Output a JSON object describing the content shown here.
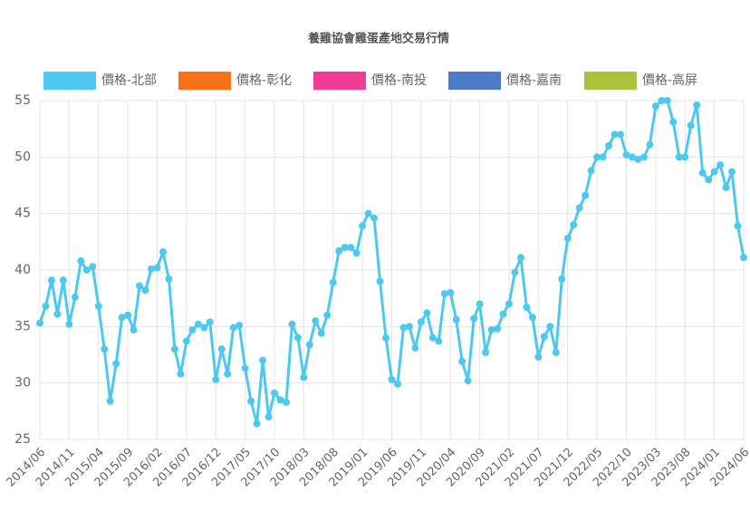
{
  "chart_data": {
    "type": "line",
    "title": "養雞協會雞蛋產地交易行情",
    "categories": [
      "2014/06",
      null,
      null,
      null,
      null,
      "2014/11",
      null,
      null,
      null,
      null,
      "2015/04",
      null,
      null,
      null,
      null,
      "2015/09",
      null,
      null,
      null,
      null,
      "2016/02",
      null,
      null,
      null,
      null,
      "2016/07",
      null,
      null,
      null,
      null,
      "2016/12",
      null,
      null,
      null,
      null,
      "2017/05",
      null,
      null,
      null,
      null,
      "2017/10",
      null,
      null,
      null,
      null,
      "2018/03",
      null,
      null,
      null,
      null,
      "2018/08",
      null,
      null,
      null,
      null,
      "2019/01",
      null,
      null,
      null,
      null,
      "2019/06",
      null,
      null,
      null,
      null,
      "2019/11",
      null,
      null,
      null,
      null,
      "2020/04",
      null,
      null,
      null,
      null,
      "2020/09",
      null,
      null,
      null,
      null,
      "2021/02",
      null,
      null,
      null,
      null,
      "2021/07",
      null,
      null,
      null,
      null,
      "2021/12",
      null,
      null,
      null,
      null,
      "2022/05",
      null,
      null,
      null,
      null,
      "2022/10",
      null,
      null,
      null,
      null,
      "2023/03",
      null,
      null,
      null,
      null,
      "2023/08",
      null,
      null,
      null,
      null,
      "2024/01",
      null,
      null,
      null,
      null,
      "2024/06"
    ],
    "series": [
      {
        "name": "價格-北部",
        "color": "#4dc9f0",
        "values": [
          35.3,
          36.8,
          39.1,
          36.1,
          39.1,
          35.2,
          37.6,
          40.8,
          40.0,
          40.3,
          36.8,
          33.0,
          28.4,
          31.7,
          35.8,
          36.0,
          34.7,
          38.6,
          38.2,
          40.1,
          40.2,
          41.6,
          39.2,
          33.0,
          30.8,
          33.7,
          34.7,
          35.2,
          34.9,
          35.4,
          30.3,
          33.0,
          30.8,
          34.9,
          35.1,
          31.3,
          28.4,
          26.4,
          32.0,
          27.0,
          29.1,
          28.5,
          28.3,
          35.2,
          34.0,
          30.5,
          33.4,
          35.5,
          34.4,
          36.0,
          38.9,
          41.7,
          42.0,
          42.0,
          41.5,
          43.9,
          45.0,
          44.6,
          39.0,
          34.0,
          30.3,
          29.9,
          34.9,
          35.0,
          33.1,
          35.4,
          36.2,
          34.0,
          33.7,
          37.9,
          38.0,
          35.6,
          31.9,
          30.2,
          35.7,
          37.0,
          32.7,
          34.7,
          34.8,
          36.1,
          37.0,
          39.8,
          41.1,
          36.7,
          35.8,
          32.3,
          34.1,
          35.0,
          32.7,
          39.2,
          42.8,
          44.0,
          45.5,
          46.6,
          48.8,
          50.0,
          50.0,
          51.0,
          52.0,
          52.0,
          50.2,
          50.0,
          49.8,
          50.0,
          51.1,
          54.5,
          55.0,
          55.0,
          53.1,
          50.0,
          50.0,
          52.8,
          54.6,
          48.6,
          48.0,
          48.7,
          49.3,
          47.3,
          48.7,
          43.9,
          41.1
        ]
      },
      {
        "name": "價格-彰化",
        "color": "#f77216",
        "values": [
          null,
          null,
          null,
          null,
          null,
          null,
          null,
          null,
          null,
          null,
          null,
          null,
          null,
          null,
          null,
          null,
          null,
          null,
          null,
          null,
          null,
          null,
          null,
          null,
          null,
          null,
          null,
          null,
          null,
          null,
          null,
          null,
          null,
          null,
          null,
          null,
          null,
          null,
          null,
          null,
          null,
          null,
          null,
          null,
          null,
          null,
          null,
          null,
          null,
          null,
          null,
          null,
          null,
          null,
          null,
          null,
          null,
          null,
          null,
          null,
          null,
          null,
          null,
          null,
          null,
          null,
          null,
          null,
          null,
          null,
          null,
          null,
          null,
          null,
          null,
          null,
          null,
          null,
          null,
          null,
          null,
          null,
          null,
          null,
          null,
          null,
          null,
          null,
          null,
          null,
          null,
          null,
          null,
          null,
          null,
          null,
          null,
          null,
          null,
          null,
          null,
          null,
          null,
          null,
          null,
          null,
          null,
          null,
          null,
          null,
          null,
          null,
          null,
          null,
          null,
          null,
          null,
          null,
          null,
          null,
          null
        ]
      },
      {
        "name": "價格-南投",
        "color": "#f23b96",
        "values": [
          null,
          null,
          null,
          null,
          null,
          null,
          null,
          null,
          null,
          null,
          null,
          null,
          null,
          null,
          null,
          null,
          null,
          null,
          null,
          null,
          null,
          null,
          null,
          null,
          null,
          null,
          null,
          null,
          null,
          null,
          null,
          null,
          null,
          null,
          null,
          null,
          null,
          null,
          null,
          null,
          null,
          null,
          null,
          null,
          null,
          null,
          null,
          null,
          null,
          null,
          null,
          null,
          null,
          null,
          null,
          null,
          null,
          null,
          null,
          null,
          null,
          null,
          null,
          null,
          null,
          null,
          null,
          null,
          null,
          null,
          null,
          null,
          null,
          null,
          null,
          null,
          null,
          null,
          null,
          null,
          null,
          null,
          null,
          null,
          null,
          null,
          null,
          null,
          null,
          null,
          null,
          null,
          null,
          null,
          null,
          null,
          null,
          null,
          null,
          null,
          null,
          null,
          null,
          null,
          null,
          null,
          null,
          null,
          null,
          null,
          null,
          null,
          null,
          null,
          null,
          null,
          null,
          null,
          null,
          null,
          null
        ]
      },
      {
        "name": "價格-嘉南",
        "color": "#4b7bc6",
        "values": [
          null,
          null,
          null,
          null,
          null,
          null,
          null,
          null,
          null,
          null,
          null,
          null,
          null,
          null,
          null,
          null,
          null,
          null,
          null,
          null,
          null,
          null,
          null,
          null,
          null,
          null,
          null,
          null,
          null,
          null,
          null,
          null,
          null,
          null,
          null,
          null,
          null,
          null,
          null,
          null,
          null,
          null,
          null,
          null,
          null,
          null,
          null,
          null,
          null,
          null,
          null,
          null,
          null,
          null,
          null,
          null,
          null,
          null,
          null,
          null,
          null,
          null,
          null,
          null,
          null,
          null,
          null,
          null,
          null,
          null,
          null,
          null,
          null,
          null,
          null,
          null,
          null,
          null,
          null,
          null,
          null,
          null,
          null,
          null,
          null,
          null,
          null,
          null,
          null,
          null,
          null,
          null,
          null,
          null,
          null,
          null,
          null,
          null,
          null,
          null,
          null,
          null,
          null,
          null,
          null,
          null,
          null,
          null,
          null,
          null,
          null,
          null,
          null,
          null,
          null,
          null,
          null,
          null,
          null,
          null,
          null
        ]
      },
      {
        "name": "價格-高屏",
        "color": "#a9c43b",
        "values": [
          null,
          null,
          null,
          null,
          null,
          null,
          null,
          null,
          null,
          null,
          null,
          null,
          null,
          null,
          null,
          null,
          null,
          null,
          null,
          null,
          null,
          null,
          null,
          null,
          null,
          null,
          null,
          null,
          null,
          null,
          null,
          null,
          null,
          null,
          null,
          null,
          null,
          null,
          null,
          null,
          null,
          null,
          null,
          null,
          null,
          null,
          null,
          null,
          null,
          null,
          null,
          null,
          null,
          null,
          null,
          null,
          null,
          null,
          null,
          null,
          null,
          null,
          null,
          null,
          null,
          null,
          null,
          null,
          null,
          null,
          null,
          null,
          null,
          null,
          null,
          null,
          null,
          null,
          null,
          null,
          null,
          null,
          null,
          null,
          null,
          null,
          null,
          null,
          null,
          null,
          null,
          null,
          null,
          null,
          null,
          null,
          null,
          null,
          null,
          null,
          null,
          null,
          null,
          null,
          null,
          null,
          null,
          null,
          null,
          null,
          null,
          null,
          null,
          null,
          null,
          null,
          null,
          null,
          null,
          null,
          null
        ]
      }
    ],
    "ylim": [
      25,
      55
    ],
    "yticks": [
      25,
      30,
      35,
      40,
      45,
      50,
      55
    ],
    "grid": true,
    "legend": "top"
  }
}
